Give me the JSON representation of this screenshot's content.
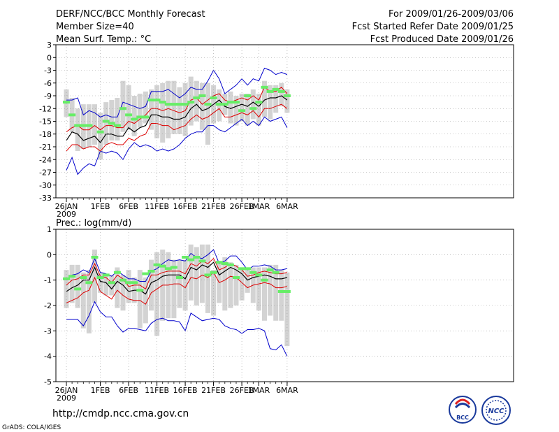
{
  "header": {
    "left": [
      "DERF/NCC/BCC Monthly Forecast",
      "Member Size=40",
      "Mean Surf. Temp.: °C"
    ],
    "right": [
      "For 2009/01/26-2009/03/06",
      "Fcst Started Refer Date 2009/01/25",
      "Fcst Produced Date 2009/01/26"
    ]
  },
  "footer": {
    "url": "http://cmdp.ncc.cma.gov.cn",
    "grads": "GrADS: COLA/IGES",
    "logo_bcc": "BCC",
    "logo_ncc": "NCC"
  },
  "colors": {
    "spread_bar": "#d3d3d3",
    "observed": "#66ee66",
    "mean_line": "#000000",
    "inner_band": "#dd0000",
    "outer_band": "#0000cc"
  },
  "chart_data": [
    {
      "type": "line",
      "title": "Mean Surf. Temp.: °C",
      "x_labels": [
        "26JAN",
        "1FEB",
        "6FEB",
        "11FEB",
        "16FEB",
        "21FEB",
        "26FEB",
        "1MAR",
        "6MAR"
      ],
      "x_label_days": [
        0,
        6,
        11,
        16,
        21,
        26,
        31,
        34,
        39
      ],
      "x_sublabel": "2009",
      "ylim": [
        -33,
        3
      ],
      "yticks": [
        3,
        0,
        -3,
        -6,
        -9,
        -12,
        -15,
        -18,
        -21,
        -24,
        -27,
        -30,
        -33
      ],
      "series": [
        {
          "name": "mean",
          "values": [
            -19.5,
            -17.5,
            -18.0,
            -19.5,
            -19.0,
            -18.5,
            -20.0,
            -18.0,
            -18.0,
            -18.5,
            -18.5,
            -16.5,
            -17.5,
            -16.5,
            -16.0,
            -13.5,
            -13.5,
            -14.0,
            -14.0,
            -14.5,
            -14.5,
            -14.0,
            -12.0,
            -11.0,
            -12.5,
            -12.0,
            -11.0,
            -10.0,
            -11.5,
            -12.0,
            -11.5,
            -11.0,
            -11.5,
            -10.5,
            -11.5,
            -10.0,
            -9.5,
            -9.5,
            -9.0,
            -10.0
          ]
        },
        {
          "name": "upper_inner",
          "values": [
            -17.5,
            -16.5,
            -16.0,
            -17.0,
            -17.0,
            -16.0,
            -17.0,
            -16.0,
            -16.0,
            -16.5,
            -16.5,
            -15.0,
            -15.5,
            -14.5,
            -13.5,
            -12.0,
            -12.0,
            -12.5,
            -12.0,
            -12.5,
            -13.0,
            -12.5,
            -10.0,
            -9.5,
            -11.0,
            -10.0,
            -9.0,
            -8.5,
            -10.0,
            -10.5,
            -10.0,
            -9.5,
            -10.0,
            -9.0,
            -10.0,
            -7.0,
            -8.0,
            -8.0,
            -7.0,
            -8.5
          ]
        },
        {
          "name": "lower_inner",
          "values": [
            -22.0,
            -20.5,
            -20.5,
            -21.5,
            -21.0,
            -21.0,
            -22.0,
            -20.5,
            -20.0,
            -20.5,
            -20.5,
            -19.0,
            -19.5,
            -18.5,
            -18.0,
            -15.5,
            -15.5,
            -16.0,
            -16.0,
            -17.0,
            -16.5,
            -16.0,
            -14.5,
            -13.5,
            -14.5,
            -14.0,
            -13.0,
            -12.0,
            -14.0,
            -14.0,
            -13.5,
            -13.0,
            -13.5,
            -12.5,
            -14.0,
            -12.0,
            -12.0,
            -11.5,
            -11.0,
            -12.0
          ]
        },
        {
          "name": "upper_outer",
          "values": [
            -10.0,
            -10.0,
            -9.5,
            -13.5,
            -12.5,
            -13.0,
            -14.0,
            -13.5,
            -14.0,
            -14.0,
            -10.5,
            -11.0,
            -11.5,
            -12.0,
            -11.5,
            -8.0,
            -8.0,
            -8.0,
            -7.5,
            -8.5,
            -9.5,
            -8.5,
            -7.0,
            -7.5,
            -7.5,
            -5.5,
            -3.0,
            -5.0,
            -8.5,
            -7.5,
            -6.5,
            -5.0,
            -6.5,
            -5.0,
            -5.5,
            -2.5,
            -3.0,
            -4.0,
            -3.5,
            -4.0
          ]
        },
        {
          "name": "lower_outer",
          "values": [
            -26.5,
            -23.5,
            -27.5,
            -26.0,
            -25.0,
            -25.5,
            -22.0,
            -22.5,
            -22.0,
            -22.5,
            -24.0,
            -21.5,
            -20.0,
            -21.0,
            -20.5,
            -21.0,
            -22.0,
            -21.5,
            -22.0,
            -21.5,
            -20.5,
            -19.0,
            -18.0,
            -17.5,
            -17.5,
            -16.0,
            -16.0,
            -17.0,
            -17.5,
            -16.5,
            -15.5,
            -14.5,
            -16.0,
            -15.0,
            -16.0,
            -14.0,
            -15.0,
            -14.5,
            -14.0,
            -16.5
          ]
        },
        {
          "name": "spread_top",
          "values": [
            -7.5,
            -9.5,
            -12.0,
            -11.0,
            -11.0,
            -11.0,
            -13.0,
            -10.5,
            -10.0,
            -9.5,
            -5.5,
            -6.5,
            -9.0,
            -8.5,
            -8.0,
            -7.5,
            -6.5,
            -6.0,
            -5.5,
            -5.5,
            -7.0,
            -6.0,
            -4.5,
            -5.5,
            -6.0,
            -6.0,
            -6.5,
            -7.5,
            -8.5,
            -8.0,
            -9.0,
            -8.5,
            -8.5,
            -7.5,
            -8.5,
            -5.5,
            -6.5,
            -6.5,
            -6.0,
            -7.5
          ]
        },
        {
          "name": "spread_bottom",
          "values": [
            -14.0,
            -17.5,
            -22.0,
            -21.5,
            -21.0,
            -20.5,
            -24.0,
            -20.5,
            -19.5,
            -19.5,
            -17.5,
            -17.0,
            -18.5,
            -16.5,
            -15.5,
            -17.0,
            -19.0,
            -20.0,
            -19.0,
            -18.0,
            -18.0,
            -18.5,
            -16.0,
            -15.0,
            -17.0,
            -20.5,
            -15.5,
            -15.0,
            -13.5,
            -15.5,
            -16.0,
            -15.0,
            -16.0,
            -14.5,
            -16.0,
            -14.0,
            -14.5,
            -13.0,
            -11.5,
            -13.0
          ]
        },
        {
          "name": "observed",
          "values": [
            -10.5,
            -13.5,
            -16.0,
            -16.0,
            -16.0,
            null,
            -17.5,
            -15.0,
            -15.5,
            -16.0,
            -12.0,
            -13.5,
            -14.5,
            -14.0,
            -14.0,
            -10.0,
            -10.0,
            -10.5,
            -11.0,
            -11.0,
            -11.0,
            -11.0,
            -10.5,
            -9.5,
            -9.0,
            -11.0,
            -9.5,
            -11.0,
            -11.0,
            -10.5,
            -10.5,
            -12.5,
            -9.0,
            -12.0,
            -10.5,
            -7.0,
            -8.0,
            -7.5,
            -8.0,
            -9.0
          ]
        }
      ]
    },
    {
      "type": "line",
      "title": "Prec.: log(mm/d)",
      "x_labels": [
        "26JAN",
        "1FEB",
        "6FEB",
        "11FEB",
        "16FEB",
        "21FEB",
        "26FEB",
        "1MAR",
        "6MAR"
      ],
      "x_label_days": [
        0,
        6,
        11,
        16,
        21,
        26,
        31,
        34,
        39
      ],
      "x_sublabel": "2009",
      "ylim": [
        -5,
        1
      ],
      "yticks": [
        1,
        0,
        -1,
        -2,
        -3,
        -4,
        -5
      ],
      "series": [
        {
          "name": "mean",
          "values": [
            -1.45,
            -1.3,
            -1.2,
            -1.0,
            -1.0,
            -0.5,
            -1.05,
            -1.1,
            -1.35,
            -1.05,
            -1.2,
            -1.45,
            -1.4,
            -1.4,
            -1.55,
            -1.1,
            -1.0,
            -0.85,
            -0.8,
            -0.8,
            -0.8,
            -0.95,
            -0.5,
            -0.6,
            -0.4,
            -0.5,
            -0.3,
            -0.8,
            -0.65,
            -0.5,
            -0.6,
            -0.75,
            -1.0,
            -0.9,
            -0.85,
            -0.8,
            -0.85,
            -0.95,
            -0.95,
            -0.9
          ]
        },
        {
          "name": "upper_inner",
          "values": [
            -1.2,
            -1.0,
            -0.95,
            -0.8,
            -0.8,
            -0.35,
            -0.85,
            -0.9,
            -1.1,
            -0.8,
            -0.95,
            -1.25,
            -1.2,
            -1.2,
            -1.35,
            -0.8,
            -0.8,
            -0.7,
            -0.65,
            -0.65,
            -0.65,
            -0.75,
            -0.35,
            -0.45,
            -0.25,
            -0.35,
            -0.15,
            -0.6,
            -0.5,
            -0.35,
            -0.45,
            -0.6,
            -0.85,
            -0.8,
            -0.7,
            -0.65,
            -0.7,
            -0.75,
            -0.75,
            -0.7
          ]
        },
        {
          "name": "lower_inner",
          "values": [
            -1.9,
            -1.8,
            -1.7,
            -1.5,
            -1.4,
            -0.9,
            -1.45,
            -1.6,
            -1.75,
            -1.4,
            -1.6,
            -1.75,
            -1.8,
            -1.8,
            -1.95,
            -1.5,
            -1.35,
            -1.2,
            -1.2,
            -1.15,
            -1.15,
            -1.3,
            -0.9,
            -0.95,
            -0.8,
            -0.9,
            -0.7,
            -1.1,
            -1.0,
            -0.85,
            -0.9,
            -1.1,
            -1.3,
            -1.2,
            -1.15,
            -1.1,
            -1.15,
            -1.3,
            -1.3,
            -1.25
          ]
        },
        {
          "name": "upper_outer",
          "values": [
            -1.0,
            -0.8,
            -0.75,
            -0.6,
            -0.7,
            -0.15,
            -0.7,
            -0.75,
            -0.85,
            -0.65,
            -0.8,
            -0.95,
            -0.95,
            -1.05,
            -1.05,
            -0.65,
            -0.55,
            -0.35,
            -0.2,
            -0.25,
            -0.2,
            -0.25,
            0.05,
            -0.1,
            -0.15,
            0.0,
            0.2,
            -0.35,
            -0.25,
            -0.05,
            -0.05,
            -0.3,
            -0.6,
            -0.45,
            -0.45,
            -0.4,
            -0.45,
            -0.6,
            -0.6,
            -0.55
          ]
        },
        {
          "name": "lower_outer",
          "values": [
            -2.55,
            -2.55,
            -2.55,
            -2.8,
            -2.4,
            -1.85,
            -2.25,
            -2.45,
            -2.45,
            -2.8,
            -3.05,
            -2.9,
            -2.9,
            -2.95,
            -3.0,
            -2.7,
            -2.55,
            -2.5,
            -2.6,
            -2.6,
            -2.65,
            -3.0,
            -2.3,
            -2.45,
            -2.6,
            -2.55,
            -2.5,
            -2.55,
            -2.8,
            -2.9,
            -2.95,
            -3.1,
            -2.95,
            -2.95,
            -2.9,
            -3.0,
            -3.7,
            -3.75,
            -3.55,
            -4.0
          ]
        },
        {
          "name": "spread_top",
          "values": [
            -0.6,
            -0.4,
            -0.4,
            -0.7,
            -0.6,
            0.2,
            -0.7,
            -0.8,
            -0.8,
            -0.5,
            -0.8,
            -0.6,
            -0.9,
            -0.6,
            -0.9,
            -0.2,
            0.1,
            0.2,
            0.1,
            -0.2,
            -0.2,
            -0.2,
            0.4,
            0.3,
            0.4,
            0.4,
            -0.6,
            -0.3,
            -0.1,
            -0.3,
            -0.4,
            -0.6,
            -0.5,
            -0.5,
            -0.5,
            -0.5,
            -0.4,
            -0.4,
            -0.6,
            -0.7
          ]
        },
        {
          "name": "spread_bottom",
          "values": [
            -2.1,
            -1.9,
            -2.1,
            -2.9,
            -3.1,
            -1.9,
            -1.5,
            -1.6,
            -1.6,
            -2.1,
            -2.2,
            -1.9,
            -1.9,
            -2.9,
            -2.7,
            -2.2,
            -3.2,
            -2.6,
            -2.5,
            -2.5,
            -2.1,
            -2.2,
            -1.8,
            -2.0,
            -1.9,
            -2.3,
            -2.4,
            -1.9,
            -2.2,
            -2.1,
            -2.0,
            -1.8,
            -1.5,
            -1.9,
            -2.2,
            -2.6,
            -2.4,
            -2.6,
            -2.6,
            -3.6
          ]
        },
        {
          "name": "observed",
          "values": [
            -0.95,
            -0.85,
            -1.35,
            -0.9,
            -1.1,
            -0.1,
            -0.9,
            -0.8,
            -1.1,
            -0.7,
            -1.0,
            -1.1,
            -1.1,
            -1.4,
            -0.75,
            -0.65,
            -0.4,
            -0.45,
            -0.55,
            -0.5,
            -0.9,
            -0.1,
            -0.2,
            -0.1,
            -0.25,
            -0.8,
            -0.7,
            -0.3,
            -0.35,
            -0.4,
            -0.9,
            -0.55,
            -0.55,
            -0.7,
            -0.8,
            -1.0,
            -0.6,
            -0.7,
            -1.45,
            -1.45
          ]
        }
      ]
    }
  ]
}
